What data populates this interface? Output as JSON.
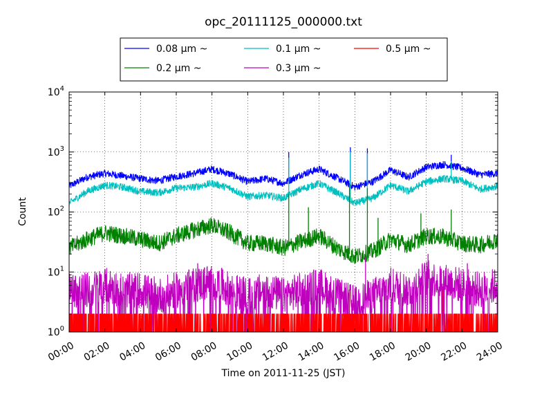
{
  "chart_data": {
    "type": "line",
    "title": "opc_20111125_000000.txt",
    "xlabel": "Time on 2011-11-25 (JST)",
    "ylabel": "Count",
    "y_scale": "log",
    "ylim": [
      1,
      10000
    ],
    "xlim_hours": [
      0,
      24
    ],
    "grid": true,
    "legend_position": "top",
    "x_ticks": [
      "00:00",
      "02:00",
      "04:00",
      "06:00",
      "08:00",
      "10:00",
      "12:00",
      "14:00",
      "16:00",
      "18:00",
      "20:00",
      "22:00",
      "24:00"
    ],
    "y_ticks": [
      {
        "base": "10",
        "exp": "0"
      },
      {
        "base": "10",
        "exp": "1"
      },
      {
        "base": "10",
        "exp": "2"
      },
      {
        "base": "10",
        "exp": "3"
      },
      {
        "base": "10",
        "exp": "4"
      }
    ],
    "x_hours": [
      0,
      1,
      2,
      3,
      4,
      5,
      6,
      7,
      8,
      9,
      10,
      11,
      12,
      13,
      14,
      15,
      16,
      17,
      18,
      19,
      20,
      21,
      22,
      23,
      24
    ],
    "series": [
      {
        "name": "0.08 μm ~",
        "color": "#0000ff",
        "noise": 0.06,
        "values": [
          270,
          380,
          440,
          400,
          360,
          330,
          390,
          440,
          520,
          430,
          320,
          360,
          300,
          420,
          520,
          370,
          260,
          320,
          500,
          380,
          560,
          620,
          540,
          420,
          440
        ],
        "spikes": [
          [
            12.3,
            1000
          ],
          [
            15.75,
            1200
          ],
          [
            16.7,
            1150
          ],
          [
            21.4,
            900
          ]
        ]
      },
      {
        "name": "0.1 μm ~",
        "color": "#00bfbf",
        "noise": 0.06,
        "values": [
          140,
          220,
          280,
          260,
          220,
          210,
          250,
          260,
          300,
          250,
          180,
          190,
          170,
          240,
          300,
          210,
          140,
          170,
          280,
          220,
          320,
          360,
          330,
          240,
          270
        ],
        "spikes": [
          [
            12.3,
            800
          ],
          [
            15.75,
            1000
          ],
          [
            16.7,
            950
          ],
          [
            21.4,
            700
          ]
        ]
      },
      {
        "name": "0.2 μm ~",
        "color": "#008000",
        "noise": 0.14,
        "values": [
          25,
          35,
          45,
          40,
          35,
          30,
          40,
          50,
          60,
          45,
          30,
          30,
          25,
          32,
          40,
          25,
          18,
          22,
          35,
          28,
          40,
          38,
          30,
          28,
          35
        ],
        "spikes": [
          [
            12.3,
            200
          ],
          [
            13.4,
            120
          ],
          [
            15.7,
            300
          ],
          [
            16.7,
            250
          ],
          [
            17.3,
            80
          ],
          [
            19.7,
            95
          ],
          [
            21.4,
            110
          ]
        ]
      },
      {
        "name": "0.3 μm ~",
        "color": "#bf00bf",
        "noise": 0.3,
        "values": [
          5,
          5,
          6,
          5,
          5,
          4,
          5,
          6,
          7,
          5,
          4,
          5,
          4,
          5,
          6,
          4,
          3,
          4,
          6,
          5,
          8,
          7,
          6,
          5,
          6
        ],
        "spikes": [
          [
            7.2,
            14
          ],
          [
            16.6,
            18
          ],
          [
            20.1,
            20
          ],
          [
            22.3,
            14
          ]
        ]
      },
      {
        "name": "0.5 μm ~",
        "color": "#ff0000",
        "noise": 0.0,
        "values": [
          1.3,
          1.3,
          1.3,
          1.3,
          1.3,
          1.3,
          1.3,
          1.3,
          1.3,
          1.3,
          1.3,
          1.3,
          1.3,
          1.3,
          1.3,
          1.3,
          1.3,
          1.3,
          1.3,
          1.3,
          1.3,
          1.3,
          1.3,
          1.3,
          1.3
        ],
        "spikes": [
          [
            15.7,
            5
          ],
          [
            20.9,
            5
          ]
        ]
      }
    ]
  }
}
